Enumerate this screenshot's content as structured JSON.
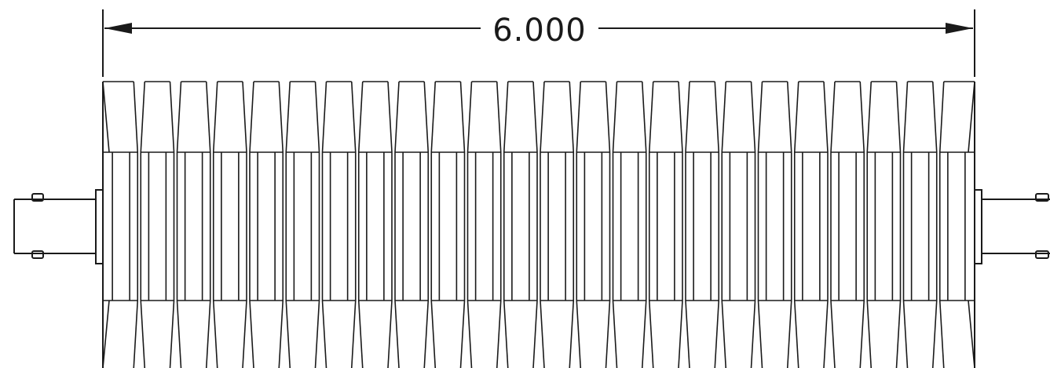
{
  "drawing": {
    "dimension_label": "6.000",
    "fin_count": 24,
    "line_color": "#1a1a1a",
    "background": "#ffffff"
  }
}
